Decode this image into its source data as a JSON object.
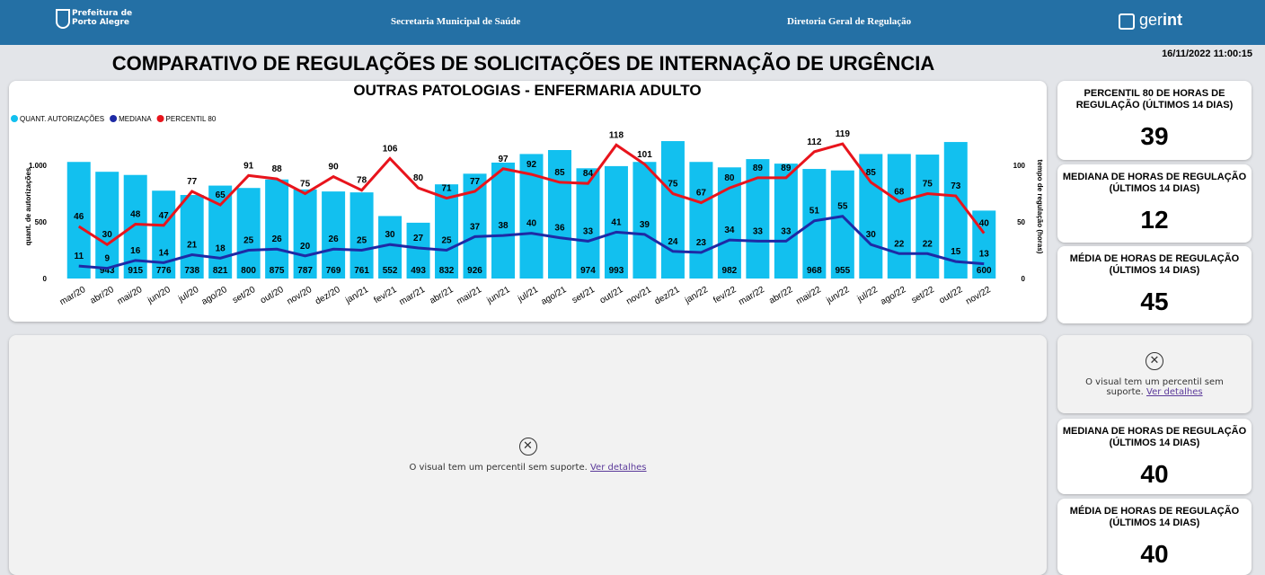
{
  "header": {
    "org_line1": "Prefeitura de",
    "org_line2": "Porto Alegre",
    "secretaria": "Secretaria Municipal de Saúde",
    "diretoria": "Diretoria Geral de Regulação",
    "brand_a": "ger",
    "brand_b": "int"
  },
  "timestamp": "16/11/2022 11:00:15",
  "title": "COMPARATIVO DE REGULAÇÕES DE SOLICITAÇÕES DE INTERNAÇÃO DE URGÊNCIA",
  "chart_data": {
    "type": "bar",
    "title": "OUTRAS PATOLOGIAS - ENFERMARIA ADULTO",
    "categories": [
      "mar/20",
      "abr/20",
      "mai/20",
      "jun/20",
      "jul/20",
      "ago/20",
      "set/20",
      "out/20",
      "nov/20",
      "dez/20",
      "jan/21",
      "fev/21",
      "mar/21",
      "abr/21",
      "mai/21",
      "jun/21",
      "jul/21",
      "ago/21",
      "set/21",
      "out/21",
      "nov/21",
      "dez/21",
      "jan/22",
      "fev/22",
      "mar/22",
      "abr/22",
      "mai/22",
      "jun/22",
      "jul/22",
      "ago/22",
      "set/22",
      "out/22",
      "nov/22"
    ],
    "series": [
      {
        "name": "QUANT. AUTORIZAÇÕES",
        "type": "bar",
        "color": "#12c0ef",
        "values": [
          1030,
          943,
          915,
          776,
          738,
          821,
          800,
          875,
          787,
          769,
          761,
          552,
          493,
          832,
          926,
          1024,
          1100,
          1135,
          974,
          993,
          1030,
          1214,
          1030,
          982,
          1055,
          1015,
          968,
          955,
          1100,
          1100,
          1095,
          1206,
          600
        ],
        "value_labels": [
          null,
          "943",
          "915",
          "776",
          "738",
          "821",
          "800",
          "875",
          "787",
          "769",
          "761",
          "552",
          "493",
          "832",
          "926",
          null,
          null,
          null,
          "974",
          "993",
          null,
          null,
          null,
          "982",
          null,
          null,
          "968",
          "955",
          null,
          null,
          null,
          null,
          "600"
        ]
      },
      {
        "name": "MEDIANA",
        "type": "line",
        "axis": "y2",
        "color": "#1e2aa5",
        "values": [
          11,
          9,
          16,
          14,
          21,
          18,
          25,
          26,
          20,
          26,
          25,
          30,
          27,
          25,
          37,
          38,
          40,
          36,
          33,
          41,
          39,
          24,
          23,
          34,
          33,
          33,
          51,
          55,
          30,
          22,
          22,
          15,
          13
        ]
      },
      {
        "name": "PERCENTIL 80",
        "type": "line",
        "axis": "y2",
        "color": "#e8141c",
        "values": [
          46,
          30,
          48,
          47,
          77,
          65,
          91,
          88,
          75,
          90,
          78,
          106,
          80,
          71,
          77,
          97,
          92,
          85,
          84,
          118,
          101,
          75,
          67,
          80,
          89,
          89,
          112,
          119,
          85,
          68,
          75,
          73,
          40
        ]
      }
    ],
    "ylabel": "quant. de autorizações",
    "y2label": "tempo de regulação (horas)",
    "ylim": [
      0,
      1270
    ],
    "yticks": [
      0,
      500,
      {
        "value": 1000,
        "label": "1.000"
      }
    ],
    "y2lim": [
      0,
      127
    ],
    "y2ticks": [
      0,
      50,
      100
    ],
    "grid": false,
    "legend": "top-left"
  },
  "cards": [
    {
      "title": "PERCENTIL 80 DE HORAS DE REGULAÇÃO (ÚLTIMOS 14 DIAS)",
      "value": "39"
    },
    {
      "title": "MEDIANA DE HORAS DE REGULAÇÃO (ÚLTIMOS 14 DIAS)",
      "value": "12"
    },
    {
      "title": "MÉDIA DE HORAS DE REGULAÇÃO (ÚLTIMOS 14 DIAS)",
      "value": "45"
    },
    {
      "title": "MEDIANA DE HORAS DE REGULAÇÃO (ÚLTIMOS 14 DIAS)",
      "value": "40"
    },
    {
      "title": "MÉDIA DE HORAS DE REGULAÇÃO (ÚLTIMOS 14 DIAS)",
      "value": "40"
    }
  ],
  "error": {
    "message": "O visual tem um percentil sem suporte.",
    "link": "Ver detalhes"
  }
}
